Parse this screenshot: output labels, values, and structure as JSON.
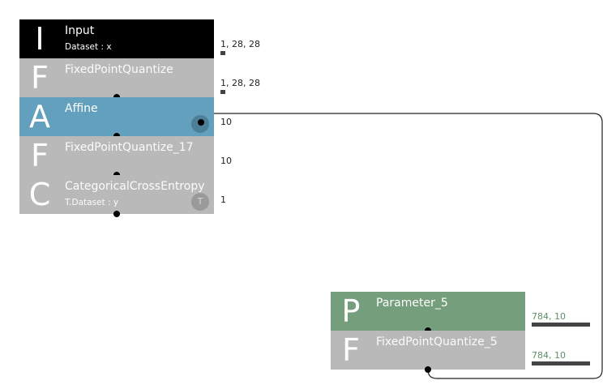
{
  "nodes": {
    "input": {
      "letter": "I",
      "title": "Input",
      "sub": "Dataset : x",
      "shape": "1, 28, 28",
      "color": "#000000"
    },
    "fpq": {
      "letter": "F",
      "title": "FixedPointQuantize",
      "shape": "1, 28, 28",
      "color": "#b9b9b9"
    },
    "affine": {
      "letter": "A",
      "title": "Affine",
      "shape": "10",
      "badge": "",
      "color": "#63a0bd"
    },
    "fpq17": {
      "letter": "F",
      "title": "FixedPointQuantize_17",
      "shape": "10",
      "color": "#b9b9b9"
    },
    "cce": {
      "letter": "C",
      "title": "CategoricalCrossEntropy",
      "sub": "T.Dataset : y",
      "shape": "1",
      "badge": "T",
      "color": "#b9b9b9"
    },
    "param5": {
      "letter": "P",
      "title": "Parameter_5",
      "shape": "784, 10",
      "color": "#759e7c"
    },
    "fpq5": {
      "letter": "F",
      "title": "FixedPointQuantize_5",
      "shape": "784, 10",
      "color": "#b9b9b9"
    }
  },
  "parameter_level": 1.0
}
